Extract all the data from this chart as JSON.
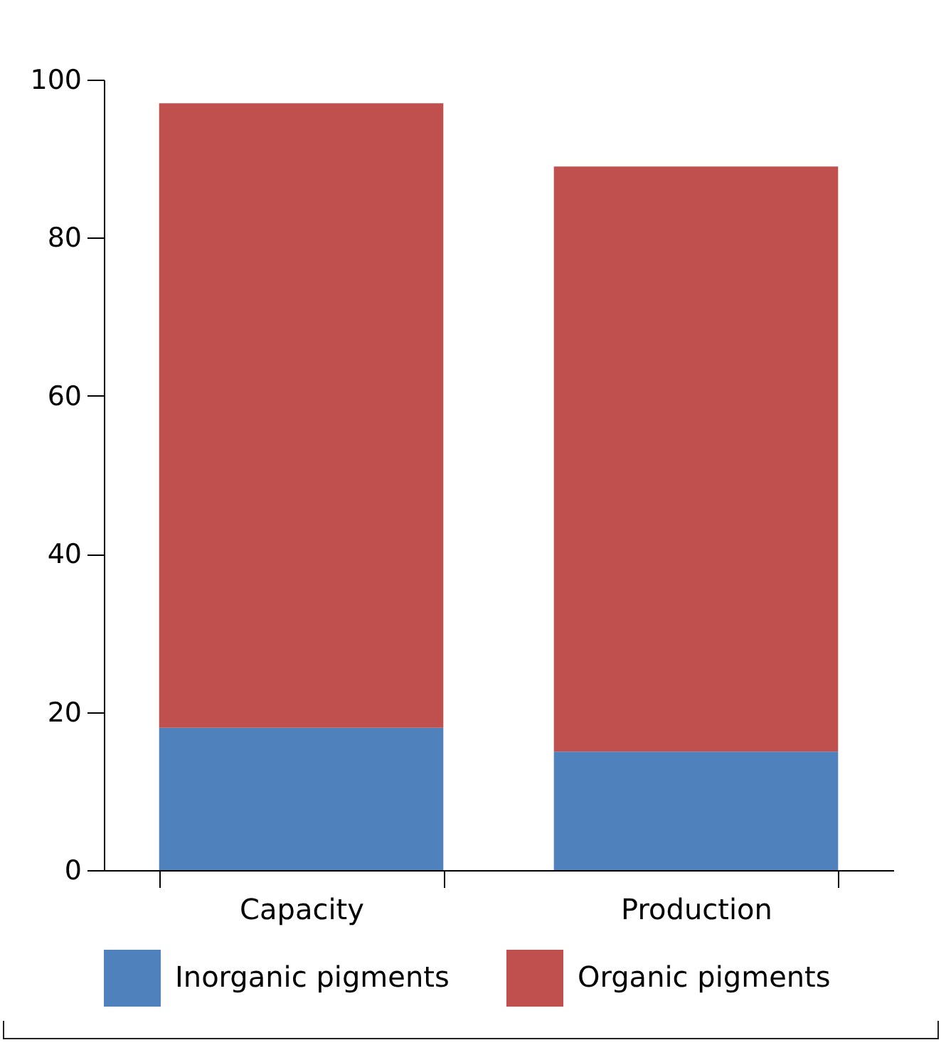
{
  "chart_data": {
    "type": "bar",
    "stacked": true,
    "categories": [
      "Capacity",
      "Production"
    ],
    "series": [
      {
        "name": "Inorganic pigments",
        "color": "#4f81bd",
        "values": [
          18,
          15
        ]
      },
      {
        "name": "Organic pigments",
        "color": "#c0504d",
        "values": [
          79,
          74
        ]
      }
    ],
    "ylim": [
      0,
      100
    ],
    "yticks": [
      0,
      20,
      40,
      60,
      80,
      100
    ],
    "grid": false,
    "legend": "bottom"
  }
}
